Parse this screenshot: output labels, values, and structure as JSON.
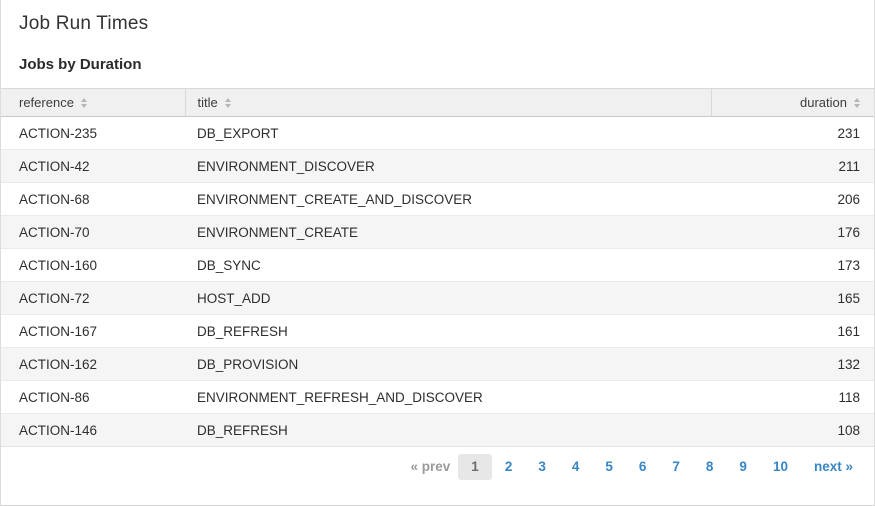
{
  "page": {
    "title": "Job Run Times",
    "subtitle": "Jobs by Duration"
  },
  "table": {
    "columns": [
      {
        "key": "reference",
        "label": "reference",
        "align": "left",
        "sortable": true
      },
      {
        "key": "title",
        "label": "title",
        "align": "left",
        "sortable": true
      },
      {
        "key": "duration",
        "label": "duration",
        "align": "right",
        "sortable": true
      }
    ],
    "rows": [
      {
        "reference": "ACTION-235",
        "title": "DB_EXPORT",
        "duration": "231"
      },
      {
        "reference": "ACTION-42",
        "title": "ENVIRONMENT_DISCOVER",
        "duration": "211"
      },
      {
        "reference": "ACTION-68",
        "title": "ENVIRONMENT_CREATE_AND_DISCOVER",
        "duration": "206"
      },
      {
        "reference": "ACTION-70",
        "title": "ENVIRONMENT_CREATE",
        "duration": "176"
      },
      {
        "reference": "ACTION-160",
        "title": "DB_SYNC",
        "duration": "173"
      },
      {
        "reference": "ACTION-72",
        "title": "HOST_ADD",
        "duration": "165"
      },
      {
        "reference": "ACTION-167",
        "title": "DB_REFRESH",
        "duration": "161"
      },
      {
        "reference": "ACTION-162",
        "title": "DB_PROVISION",
        "duration": "132"
      },
      {
        "reference": "ACTION-86",
        "title": "ENVIRONMENT_REFRESH_AND_DISCOVER",
        "duration": "118"
      },
      {
        "reference": "ACTION-146",
        "title": "DB_REFRESH",
        "duration": "108"
      }
    ]
  },
  "pagination": {
    "prev_label": "« prev",
    "next_label": "next »",
    "current_page": "1",
    "pages": [
      "1",
      "2",
      "3",
      "4",
      "5",
      "6",
      "7",
      "8",
      "9",
      "10"
    ]
  },
  "colors": {
    "link_blue": "#3786c5",
    "header_bg": "#f0f0f0",
    "stripe": "#f5f5f5",
    "current_page_bg": "#e7e7e7",
    "muted_gray": "#9a9a9a"
  }
}
